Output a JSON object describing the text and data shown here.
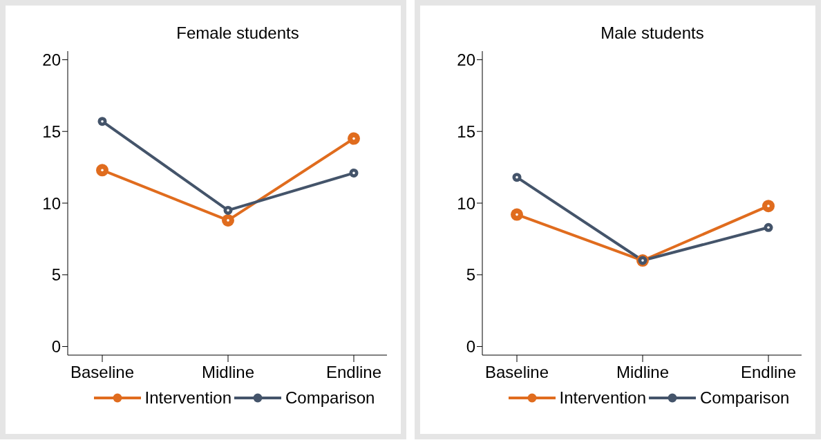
{
  "chart_data": [
    {
      "type": "line",
      "title": "Female students",
      "categories": [
        "Baseline",
        "Midline",
        "Endline"
      ],
      "series": [
        {
          "name": "Intervention",
          "color": "#e06c1e",
          "values": [
            12.3,
            8.8,
            14.5
          ]
        },
        {
          "name": "Comparison",
          "color": "#44546a",
          "values": [
            15.7,
            9.5,
            12.1
          ]
        }
      ],
      "ylim": [
        -0.6,
        20.6
      ],
      "yticks": [
        0,
        5,
        10,
        15,
        20
      ],
      "grid": false,
      "legend": "bottom",
      "marker": "circle"
    },
    {
      "type": "line",
      "title": "Male students",
      "categories": [
        "Baseline",
        "Midline",
        "Endline"
      ],
      "series": [
        {
          "name": "Intervention",
          "color": "#e06c1e",
          "values": [
            9.2,
            6.0,
            9.8
          ]
        },
        {
          "name": "Comparison",
          "color": "#44546a",
          "values": [
            11.8,
            6.0,
            8.3
          ]
        }
      ],
      "ylim": [
        -0.6,
        20.6
      ],
      "yticks": [
        0,
        5,
        10,
        15,
        20
      ],
      "grid": false,
      "legend": "bottom",
      "marker": "circle"
    }
  ]
}
